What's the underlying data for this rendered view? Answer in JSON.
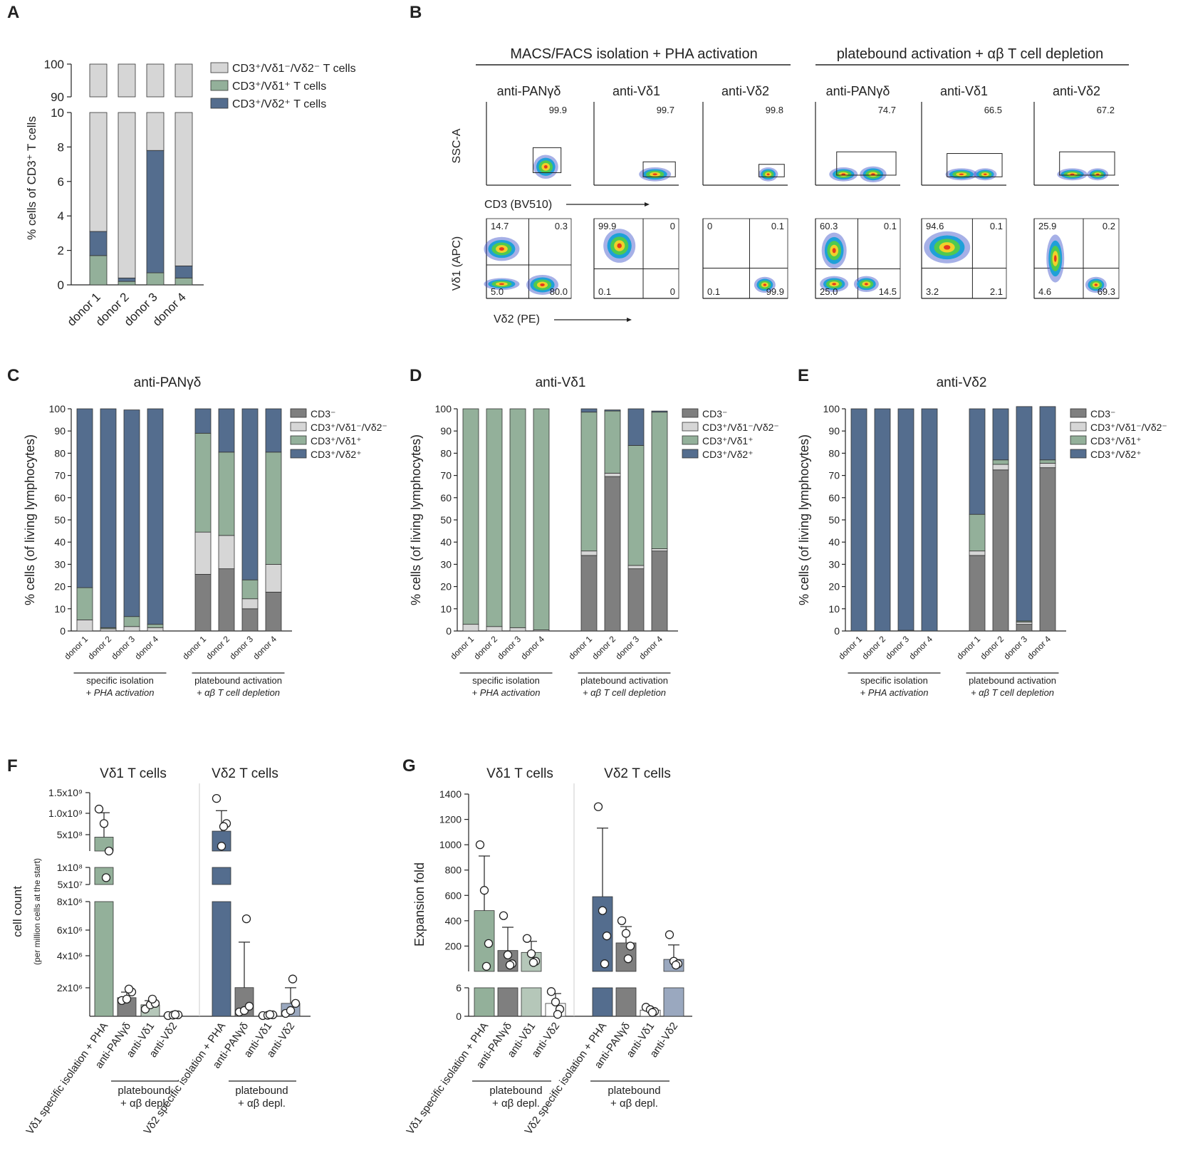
{
  "chart_data": [
    {
      "id": "A",
      "type": "bar",
      "stacked": true,
      "broken_axis": true,
      "ylabel": "% cells of CD3⁺ T cells",
      "categories": [
        "donor 1",
        "donor 2",
        "donor 3",
        "donor 4"
      ],
      "yticks_low": [
        "0",
        "2",
        "4",
        "6",
        "8",
        "10"
      ],
      "yticks_high": [
        "90",
        "100"
      ],
      "ylim": [
        0,
        100
      ],
      "series": [
        {
          "name": "CD3⁺/Vδ1⁺ T cells",
          "color": "#93b09a",
          "values": [
            1.7,
            0.2,
            0.7,
            0.4
          ]
        },
        {
          "name": "CD3⁺/Vδ2⁺ T cells",
          "color": "#546d8e",
          "values": [
            1.4,
            0.2,
            7.1,
            0.7
          ]
        },
        {
          "name": "CD3⁺/Vδ1⁻/Vδ2⁻ T cells",
          "color": "#d6d6d6",
          "values": [
            96.9,
            99.6,
            92.2,
            98.9
          ]
        }
      ]
    },
    {
      "id": "B",
      "type": "scatter",
      "subtype": "flow-cytometry",
      "group_titles": [
        "MACS/FACS isolation + PHA activation",
        "platebound activation + αβ T cell depletion"
      ],
      "panel_titles": [
        "anti-PANγδ",
        "anti-Vδ1",
        "anti-Vδ2",
        "anti-PANγδ",
        "anti-Vδ1",
        "anti-Vδ2"
      ],
      "row1_ylabel": "SSC-A",
      "row1_xlabel": "CD3 (BV510)",
      "row2_ylabel": "Vδ1 (APC)",
      "row2_xlabel": "Vδ2 (PE)",
      "gate_values": [
        "99.9",
        "99.7",
        "99.8",
        "74.7",
        "66.5",
        "67.2"
      ],
      "quadrants": [
        [
          "14.7",
          "0.3",
          "5.0",
          "80.0"
        ],
        [
          "99.9",
          "0",
          "0.1",
          "0"
        ],
        [
          "0",
          "0.1",
          "0.1",
          "99.9"
        ],
        [
          "60.3",
          "0.1",
          "25.0",
          "14.5"
        ],
        [
          "94.6",
          "0.1",
          "3.2",
          "2.1"
        ],
        [
          "25.9",
          "0.2",
          "4.6",
          "69.3"
        ]
      ]
    },
    {
      "id": "C",
      "type": "bar",
      "stacked": true,
      "title": "anti-PANγδ",
      "ylabel": "% cells (of living lymphocytes)",
      "ylim": [
        0,
        100
      ],
      "yticks": [
        "0",
        "10",
        "20",
        "30",
        "40",
        "50",
        "60",
        "70",
        "80",
        "90",
        "100"
      ],
      "categories": [
        "donor 1",
        "donor 2",
        "donor 3",
        "donor 4",
        "donor 1",
        "donor 2",
        "donor 3",
        "donor 4"
      ],
      "groups": [
        {
          "line1": "specific isolation",
          "line2": "+ PHA activation"
        },
        {
          "line1": "platebound activation",
          "line2": "+ αβ T cell depletion"
        }
      ],
      "series": [
        {
          "name": "CD3⁻",
          "color": "#7f7f7f",
          "values": [
            0,
            0,
            0,
            0,
            25.5,
            28,
            10,
            17.5
          ]
        },
        {
          "name": "CD3⁺/Vδ1⁻/Vδ2⁻",
          "color": "#d6d6d6",
          "values": [
            5,
            1,
            2,
            1.5,
            19,
            15,
            4.5,
            12.5
          ]
        },
        {
          "name": "CD3⁺/Vδ1⁺",
          "color": "#93b09a",
          "values": [
            14.5,
            0.5,
            4.5,
            1.5,
            44.5,
            37.5,
            8.5,
            50.5
          ]
        },
        {
          "name": "CD3⁺/Vδ2⁺",
          "color": "#546d8e",
          "values": [
            80.5,
            98.5,
            93,
            97,
            11,
            19.5,
            77,
            19.5
          ]
        }
      ]
    },
    {
      "id": "D",
      "type": "bar",
      "stacked": true,
      "title": "anti-Vδ1",
      "ylabel": "% cells (of living lymphocytes)",
      "ylim": [
        0,
        100
      ],
      "yticks": [
        "0",
        "10",
        "20",
        "30",
        "40",
        "50",
        "60",
        "70",
        "80",
        "90",
        "100"
      ],
      "categories": [
        "donor 1",
        "donor 2",
        "donor 3",
        "donor 4",
        "donor 1",
        "donor 2",
        "donor 3",
        "donor 4"
      ],
      "groups": [
        {
          "line1": "specific isolation",
          "line2": "+ PHA activation"
        },
        {
          "line1": "platebound activation",
          "line2": "+ αβ T cell depletion"
        }
      ],
      "series": [
        {
          "name": "CD3⁻",
          "color": "#7f7f7f",
          "values": [
            0,
            0,
            0,
            0,
            34,
            69.5,
            28,
            36
          ]
        },
        {
          "name": "CD3⁺/Vδ1⁻/Vδ2⁻",
          "color": "#d6d6d6",
          "values": [
            3,
            2,
            1.5,
            0.5,
            2,
            1.5,
            1.5,
            1
          ]
        },
        {
          "name": "CD3⁺/Vδ1⁺",
          "color": "#93b09a",
          "values": [
            97,
            98,
            98.5,
            99.5,
            62.5,
            28,
            54,
            61.5
          ]
        },
        {
          "name": "CD3⁺/Vδ2⁺",
          "color": "#546d8e",
          "values": [
            0,
            0,
            0,
            0,
            1.5,
            0.5,
            16.5,
            0.5
          ]
        }
      ]
    },
    {
      "id": "E",
      "type": "bar",
      "stacked": true,
      "title": "anti-Vδ2",
      "ylabel": "% cells (of living lymphocytes)",
      "ylim": [
        0,
        100
      ],
      "yticks": [
        "0",
        "10",
        "20",
        "30",
        "40",
        "50",
        "60",
        "70",
        "80",
        "90",
        "100"
      ],
      "categories": [
        "donor 1",
        "donor 2",
        "donor 3",
        "donor 4",
        "donor 1",
        "donor 2",
        "donor 3",
        "donor 4"
      ],
      "groups": [
        {
          "line1": "specific isolation",
          "line2": "+ PHA activation"
        },
        {
          "line1": "platebound activation",
          "line2": "+ αβ T cell depletion"
        }
      ],
      "series": [
        {
          "name": "CD3⁻",
          "color": "#7f7f7f",
          "values": [
            0,
            0,
            0,
            0,
            34,
            72.5,
            3,
            73.5
          ]
        },
        {
          "name": "CD3⁺/Vδ1⁻/Vδ2⁻",
          "color": "#d6d6d6",
          "values": [
            0,
            0,
            0.3,
            0,
            2,
            2.5,
            1,
            2
          ]
        },
        {
          "name": "CD3⁺/Vδ1⁺",
          "color": "#93b09a",
          "values": [
            0,
            0,
            0,
            0,
            16.5,
            2,
            0.5,
            1.5
          ]
        },
        {
          "name": "CD3⁺/Vδ2⁺",
          "color": "#546d8e",
          "values": [
            100,
            100,
            99.7,
            100,
            47.5,
            23,
            96.5,
            24
          ]
        }
      ]
    },
    {
      "id": "F",
      "type": "bar",
      "subtype": "bar-with-points",
      "broken_axis": true,
      "ylabel": "cell count",
      "ylabel_sub": "(per million cells at the start)",
      "group_titles": [
        "Vδ1 T cells",
        "Vδ2 T cells"
      ],
      "yticks": [
        "1.5x10⁹",
        "1.0x10⁹",
        "5x10⁸",
        "1x10⁸",
        "5x10⁷",
        "8x10⁶",
        "6x10⁶",
        "4x10⁶",
        "2x10⁶"
      ],
      "categories": [
        "Vδ1 specific isolation + PHA",
        "anti-PANγδ",
        "anti-Vδ1",
        "anti-Vδ2",
        "Vδ2 specific isolation + PHA",
        "anti-PANγδ",
        "anti-Vδ1",
        "anti-Vδ2"
      ],
      "bracket_label_1": "platebound",
      "bracket_label_2": "+ αβ depl.",
      "means": [
        500000000,
        1300000,
        800000,
        100000,
        580000000,
        2000000,
        100000,
        900000
      ],
      "points": [
        [
          1000000000,
          700000000,
          300000000,
          70000000
        ],
        [
          1100000,
          1200000,
          1700000,
          1900000
        ],
        [
          500000,
          800000,
          900000,
          1200000
        ],
        [
          50000,
          80000,
          100000,
          120000
        ],
        [
          1300000000,
          400000000,
          700000000,
          650000000
        ],
        [
          300000,
          400000,
          700000,
          6800000
        ],
        [
          50000,
          70000,
          100000,
          120000
        ],
        [
          200000,
          400000,
          900000,
          2600000
        ]
      ],
      "colors": [
        "#93b09a",
        "#7f7f7f",
        "#b5c7b9",
        "#ffffff",
        "#546d8e",
        "#7f7f7f",
        "#ffffff",
        "#9aa8bf"
      ]
    },
    {
      "id": "G",
      "type": "bar",
      "subtype": "bar-with-points",
      "broken_axis": true,
      "ylabel": "Expansion fold",
      "group_titles": [
        "Vδ1 T cells",
        "Vδ2 T cells"
      ],
      "yticks": [
        "0",
        "6",
        "200",
        "400",
        "600",
        "800",
        "1000",
        "1200",
        "1400"
      ],
      "categories": [
        "Vδ1 specific isolation + PHA",
        "anti-PANγδ",
        "anti-Vδ1",
        "anti-Vδ2",
        "Vδ2 specific isolation + PHA",
        "anti-PANγδ",
        "anti-Vδ1",
        "anti-Vδ2"
      ],
      "bracket_label_1": "platebound",
      "bracket_label_2": "+ αβ depl.",
      "means": [
        480,
        165,
        150,
        2.7,
        590,
        225,
        1.3,
        95
      ],
      "points": [
        [
          1000,
          640,
          220,
          40
        ],
        [
          440,
          130,
          60,
          50
        ],
        [
          260,
          140,
          80,
          70
        ],
        [
          5.2,
          3,
          1.5,
          0.4
        ],
        [
          1300,
          480,
          280,
          60
        ],
        [
          400,
          300,
          200,
          100
        ],
        [
          1.9,
          1.4,
          1.0,
          0.8
        ],
        [
          290,
          80,
          60,
          50
        ]
      ],
      "colors": [
        "#93b09a",
        "#7f7f7f",
        "#b5c7b9",
        "#ffffff",
        "#546d8e",
        "#7f7f7f",
        "#ffffff",
        "#9aa8bf"
      ]
    }
  ],
  "panel_letters": [
    "A",
    "B",
    "C",
    "D",
    "E",
    "F",
    "G"
  ]
}
